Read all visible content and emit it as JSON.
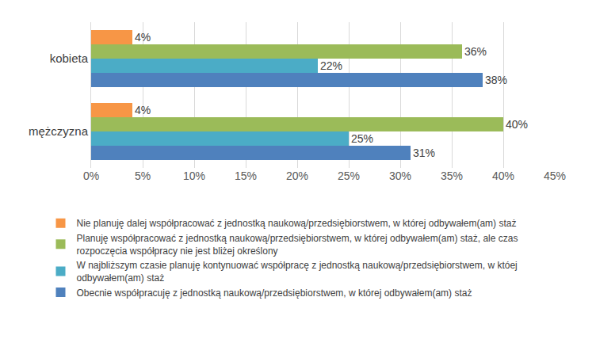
{
  "chart_data": {
    "type": "bar",
    "orientation": "horizontal",
    "categories": [
      "kobieta",
      "mężczyzna"
    ],
    "series": [
      {
        "name": "Nie planuję dalej współpracować z jednostką naukową/przedsiębiorstwem, w której odbywałem(am) staż",
        "color": "#F79646",
        "values": [
          4,
          4
        ],
        "value_labels": [
          "4%",
          "4%"
        ]
      },
      {
        "name": "Planuję współpracować z jednostką naukową/przedsiębiorstwem, w której odbywałem(am) staż, ale czas rozpoczęcia współpracy nie jest bliżej określony",
        "color": "#9BBB59",
        "values": [
          36,
          40
        ],
        "value_labels": [
          "36%",
          "40%"
        ]
      },
      {
        "name": "W najbliższym czasie planuję kontynuować współpracę z jednostką naukową/przedsiębiorstwem, w któej odbywałem(am) staż",
        "color": "#4BACC6",
        "values": [
          22,
          25
        ],
        "value_labels": [
          "22%",
          "25%"
        ]
      },
      {
        "name": "Obecnie współpracuję z jednostką naukową/przedsiębiorstwem, w której odbywałem(am) staż",
        "color": "#4F81BD",
        "values": [
          38,
          31
        ],
        "value_labels": [
          "38%",
          "31%"
        ]
      }
    ],
    "xlim": [
      0,
      45
    ],
    "xticks": [
      {
        "value": 0,
        "label": "0%"
      },
      {
        "value": 5,
        "label": "5%"
      },
      {
        "value": 10,
        "label": "10%"
      },
      {
        "value": 15,
        "label": "15%"
      },
      {
        "value": 20,
        "label": "20%"
      },
      {
        "value": 25,
        "label": "25%"
      },
      {
        "value": 30,
        "label": "30%"
      },
      {
        "value": 35,
        "label": "35%"
      },
      {
        "value": 40,
        "label": "40%"
      },
      {
        "value": 45,
        "label": "45%"
      }
    ],
    "grid": true,
    "data_labels": true,
    "legend": "bottom"
  }
}
